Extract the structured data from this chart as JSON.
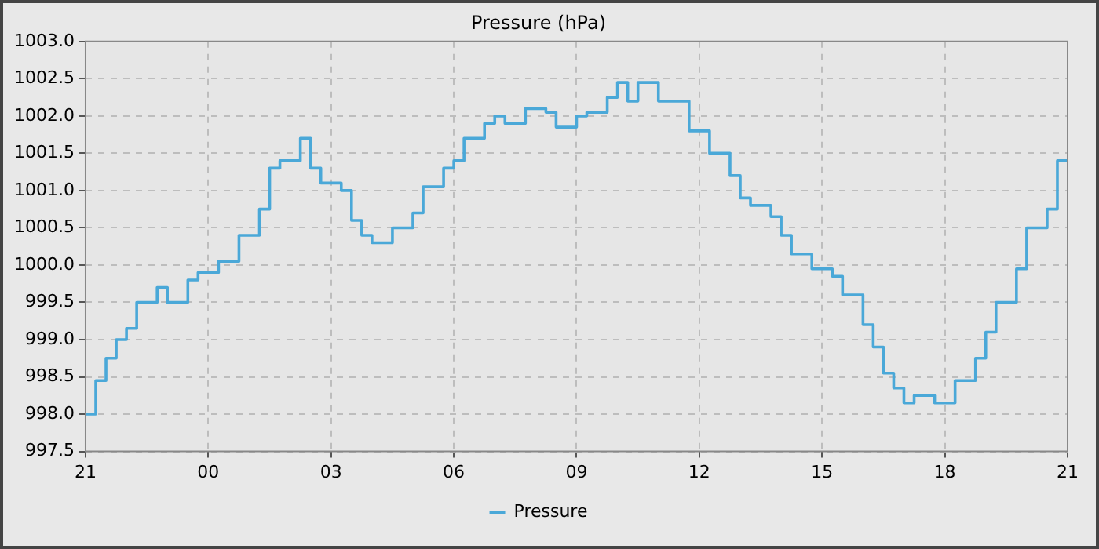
{
  "chart_data": {
    "type": "step",
    "title": "Pressure (hPa)",
    "categories": [
      "21",
      null,
      null,
      null,
      null,
      null,
      null,
      null,
      null,
      null,
      null,
      null,
      "00",
      null,
      null,
      null,
      null,
      null,
      null,
      null,
      null,
      null,
      null,
      null,
      "03",
      null,
      null,
      null,
      null,
      null,
      null,
      null,
      null,
      null,
      null,
      null,
      "06",
      null,
      null,
      null,
      null,
      null,
      null,
      null,
      null,
      null,
      null,
      null,
      "09",
      null,
      null,
      null,
      null,
      null,
      null,
      null,
      null,
      null,
      null,
      null,
      "12",
      null,
      null,
      null,
      null,
      null,
      null,
      null,
      null,
      null,
      null,
      null,
      "15",
      null,
      null,
      null,
      null,
      null,
      null,
      null,
      null,
      null,
      null,
      null,
      "18",
      null,
      null,
      null,
      null,
      null,
      null,
      null,
      null,
      null,
      null,
      null,
      "21"
    ],
    "series": [
      {
        "name": "Pressure",
        "color": "#4aa8d8",
        "values": [
          998.0,
          998.0,
          998.45,
          998.75,
          999.0,
          999.15,
          999.5,
          999.5,
          999.7,
          999.5,
          999.5,
          999.8,
          999.9,
          999.9,
          1000.05,
          1000.05,
          1000.4,
          1000.4,
          1000.75,
          1001.3,
          1001.4,
          1001.4,
          1001.7,
          1001.3,
          1001.1,
          1001.1,
          1001.0,
          1000.6,
          1000.4,
          1000.3,
          1000.3,
          1000.5,
          1000.5,
          1000.7,
          1001.05,
          1001.05,
          1001.3,
          1001.4,
          1001.7,
          1001.7,
          1001.9,
          1002.0,
          1001.9,
          1001.9,
          1002.1,
          1002.1,
          1002.05,
          1001.85,
          1001.85,
          1002.0,
          1002.05,
          1002.05,
          1002.25,
          1002.45,
          1002.2,
          1002.45,
          1002.45,
          1002.2,
          1002.2,
          1002.2,
          1001.8,
          1001.8,
          1001.5,
          1001.5,
          1001.2,
          1000.9,
          1000.8,
          1000.8,
          1000.65,
          1000.4,
          1000.15,
          1000.15,
          999.95,
          999.95,
          999.85,
          999.6,
          999.6,
          999.2,
          998.9,
          998.55,
          998.35,
          998.15,
          998.25,
          998.25,
          998.15,
          998.15,
          998.45,
          998.45,
          998.75,
          999.1,
          999.5,
          999.5,
          999.95,
          1000.5,
          1000.5,
          1000.75,
          1001.4
        ]
      }
    ],
    "ylim": [
      997.5,
      1003.0
    ],
    "yticks": [
      {
        "value": 997.5,
        "label": "997.5"
      },
      {
        "value": 998,
        "label": "998.0"
      },
      {
        "value": 998.5,
        "label": "998.5"
      },
      {
        "value": 999,
        "label": "999.0"
      },
      {
        "value": 999.5,
        "label": "999.5"
      },
      {
        "value": 1000,
        "label": "1000.0"
      },
      {
        "value": 1000.5,
        "label": "1000.5"
      },
      {
        "value": 1001,
        "label": "1001.0"
      },
      {
        "value": 1001.5,
        "label": "1001.5"
      },
      {
        "value": 1002,
        "label": "1002.0"
      },
      {
        "value": 1002.5,
        "label": "1002.5"
      },
      {
        "value": 1003,
        "label": "1003.0"
      }
    ],
    "grid": true,
    "legend": "bottom",
    "marker": "none",
    "line_style": "solid"
  }
}
